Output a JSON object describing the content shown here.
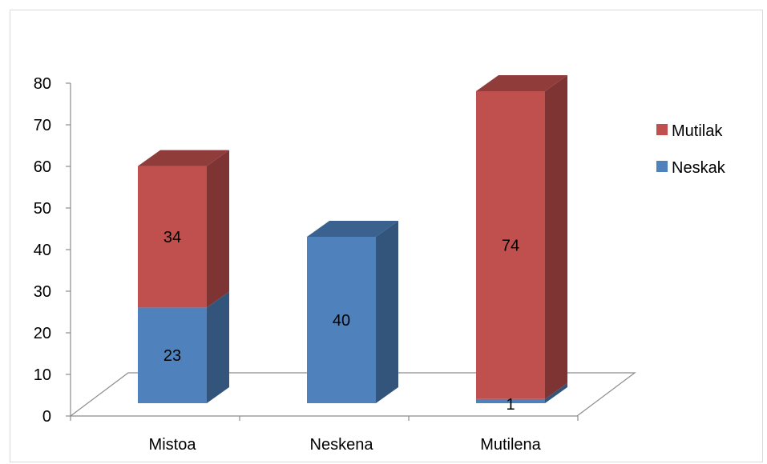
{
  "chart_data": {
    "type": "bar",
    "stacked": true,
    "style": "3d-column",
    "categories": [
      "Mistoa",
      "Neskena",
      "Mutilena"
    ],
    "series": [
      {
        "name": "Neskak",
        "values": [
          23,
          40,
          1
        ],
        "color": "#4F81BD"
      },
      {
        "name": "Mutilak",
        "values": [
          34,
          0,
          74
        ],
        "color": "#C0504D"
      }
    ],
    "data_labels": [
      {
        "series": "Neskak",
        "category": "Mistoa",
        "text": "23"
      },
      {
        "series": "Mutilak",
        "category": "Mistoa",
        "text": "34"
      },
      {
        "series": "Neskak",
        "category": "Neskena",
        "text": "40"
      },
      {
        "series": "Neskak",
        "category": "Mutilena",
        "text": "1"
      },
      {
        "series": "Mutilak",
        "category": "Mutilena",
        "text": "74"
      }
    ],
    "ylim": [
      0,
      80
    ],
    "yticks": [
      "0",
      "10",
      "20",
      "30",
      "40",
      "50",
      "60",
      "70",
      "80"
    ],
    "legend": {
      "position": "right",
      "entries": [
        {
          "label": "Mutilak",
          "color": "#C0504D"
        },
        {
          "label": "Neskak",
          "color": "#4F81BD"
        }
      ]
    },
    "grid": false,
    "title": "",
    "xlabel": "",
    "ylabel": ""
  }
}
